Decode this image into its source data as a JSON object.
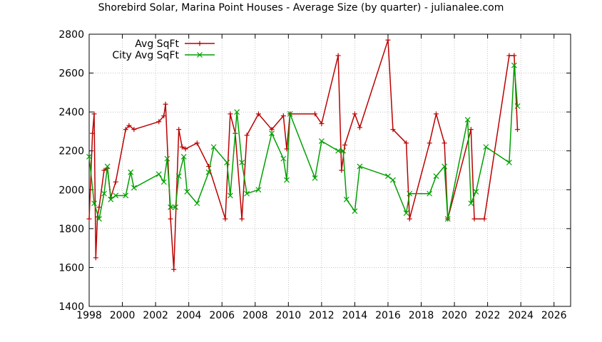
{
  "chart_data": {
    "type": "line",
    "title": "Shorebird Solar, Marina Point Houses - Average Size (by quarter) - julianalee.com",
    "xlabel": "",
    "ylabel": "",
    "xlim": [
      1998,
      2027
    ],
    "ylim": [
      1400,
      2800
    ],
    "x_ticks": [
      1998,
      2000,
      2002,
      2004,
      2006,
      2008,
      2010,
      2012,
      2014,
      2016,
      2018,
      2020,
      2022,
      2024,
      2026
    ],
    "y_ticks": [
      1400,
      1600,
      1800,
      2000,
      2200,
      2400,
      2600,
      2800
    ],
    "grid": true,
    "legend_position": "top-left",
    "series": [
      {
        "name": "Avg SqFt",
        "color": "#bb0000",
        "marker": "plus",
        "x": [
          1998.0,
          1998.2,
          1998.3,
          1998.4,
          1998.5,
          1998.6,
          1998.9,
          1999.1,
          1999.3,
          1999.6,
          2000.2,
          2000.4,
          2000.7,
          2002.2,
          2002.5,
          2002.6,
          2002.9,
          2003.1,
          2003.4,
          2003.6,
          2003.8,
          2004.5,
          2005.2,
          2006.2,
          2006.5,
          2006.8,
          2007.2,
          2007.5,
          2008.2,
          2009.0,
          2009.7,
          2009.9,
          2010.1,
          2011.6,
          2012.0,
          2013.0,
          2013.2,
          2013.4,
          2014.0,
          2014.3,
          2016.0,
          2016.3,
          2017.1,
          2017.3,
          2018.5,
          2018.9,
          2019.4,
          2019.6,
          2021.0,
          2021.2,
          2021.8,
          2023.3,
          2023.6,
          2023.8
        ],
        "values": [
          1850,
          2290,
          2390,
          1650,
          1860,
          1910,
          2100,
          2110,
          1960,
          2040,
          2310,
          2330,
          2310,
          2350,
          2380,
          2440,
          1850,
          1590,
          2310,
          2220,
          2210,
          2240,
          2120,
          1850,
          2390,
          2290,
          1850,
          2280,
          2390,
          2310,
          2380,
          2210,
          2390,
          2390,
          2340,
          2690,
          2100,
          2230,
          2390,
          2320,
          2770,
          2310,
          2240,
          1850,
          2240,
          2390,
          2240,
          1850,
          2310,
          1850,
          1850,
          2690,
          2690,
          2310
        ]
      },
      {
        "name": "City Avg SqFt",
        "color": "#00a000",
        "marker": "cross",
        "x": [
          1998.0,
          1998.3,
          1998.6,
          1998.9,
          1999.1,
          1999.3,
          1999.6,
          2000.2,
          2000.5,
          2000.7,
          2002.2,
          2002.5,
          2002.7,
          2002.9,
          2003.2,
          2003.4,
          2003.7,
          2003.9,
          2004.5,
          2005.2,
          2005.5,
          2006.3,
          2006.5,
          2006.9,
          2007.2,
          2007.5,
          2008.2,
          2009.0,
          2009.7,
          2009.9,
          2010.1,
          2011.6,
          2012.0,
          2013.0,
          2013.3,
          2013.5,
          2014.0,
          2014.3,
          2016.0,
          2016.3,
          2017.1,
          2017.3,
          2018.5,
          2018.9,
          2019.4,
          2019.6,
          2020.8,
          2021.0,
          2021.3,
          2021.9,
          2023.3,
          2023.6,
          2023.8
        ],
        "values": [
          2170,
          1930,
          1850,
          1980,
          2120,
          1950,
          1970,
          1970,
          2090,
          2010,
          2080,
          2040,
          2160,
          1910,
          1910,
          2070,
          2170,
          1990,
          1930,
          2090,
          2220,
          2140,
          1970,
          2400,
          2140,
          1980,
          2000,
          2290,
          2160,
          2050,
          2390,
          2060,
          2250,
          2200,
          2200,
          1950,
          1890,
          2120,
          2070,
          2050,
          1880,
          1980,
          1980,
          2070,
          2120,
          1850,
          2360,
          1930,
          1990,
          2220,
          2140,
          2640,
          2430
        ]
      }
    ]
  }
}
